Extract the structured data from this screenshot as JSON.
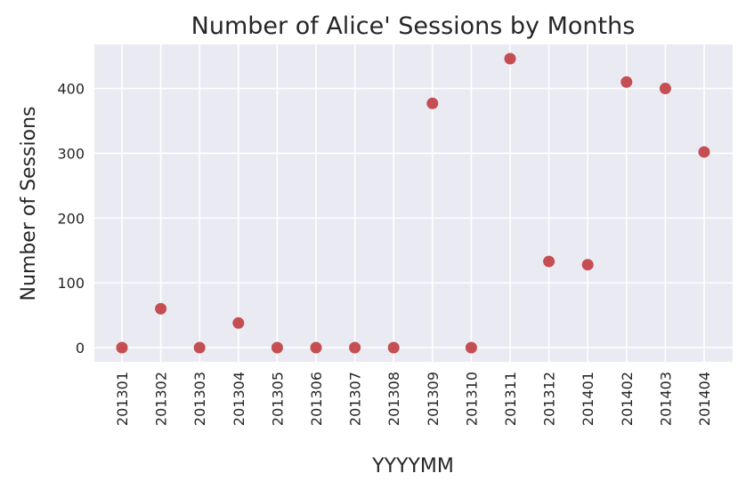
{
  "chart_data": {
    "type": "scatter",
    "title": "Number of Alice' Sessions by Months",
    "xlabel": "YYYYMM",
    "ylabel": "Number of Sessions",
    "categories": [
      "201301",
      "201302",
      "201303",
      "201304",
      "201305",
      "201306",
      "201307",
      "201308",
      "201309",
      "201310",
      "201311",
      "201312",
      "201401",
      "201402",
      "201403",
      "201404"
    ],
    "values": [
      0,
      60,
      0,
      38,
      0,
      0,
      0,
      0,
      377,
      0,
      446,
      133,
      128,
      410,
      400,
      302
    ],
    "yticks": [
      0,
      100,
      200,
      300,
      400
    ],
    "ylim": [
      -22,
      468
    ],
    "grid": true,
    "legend": "none",
    "colors": {
      "background": "#eaeaf2",
      "grid": "#ffffff",
      "marker": "#c44e52",
      "text": "#262626"
    }
  }
}
